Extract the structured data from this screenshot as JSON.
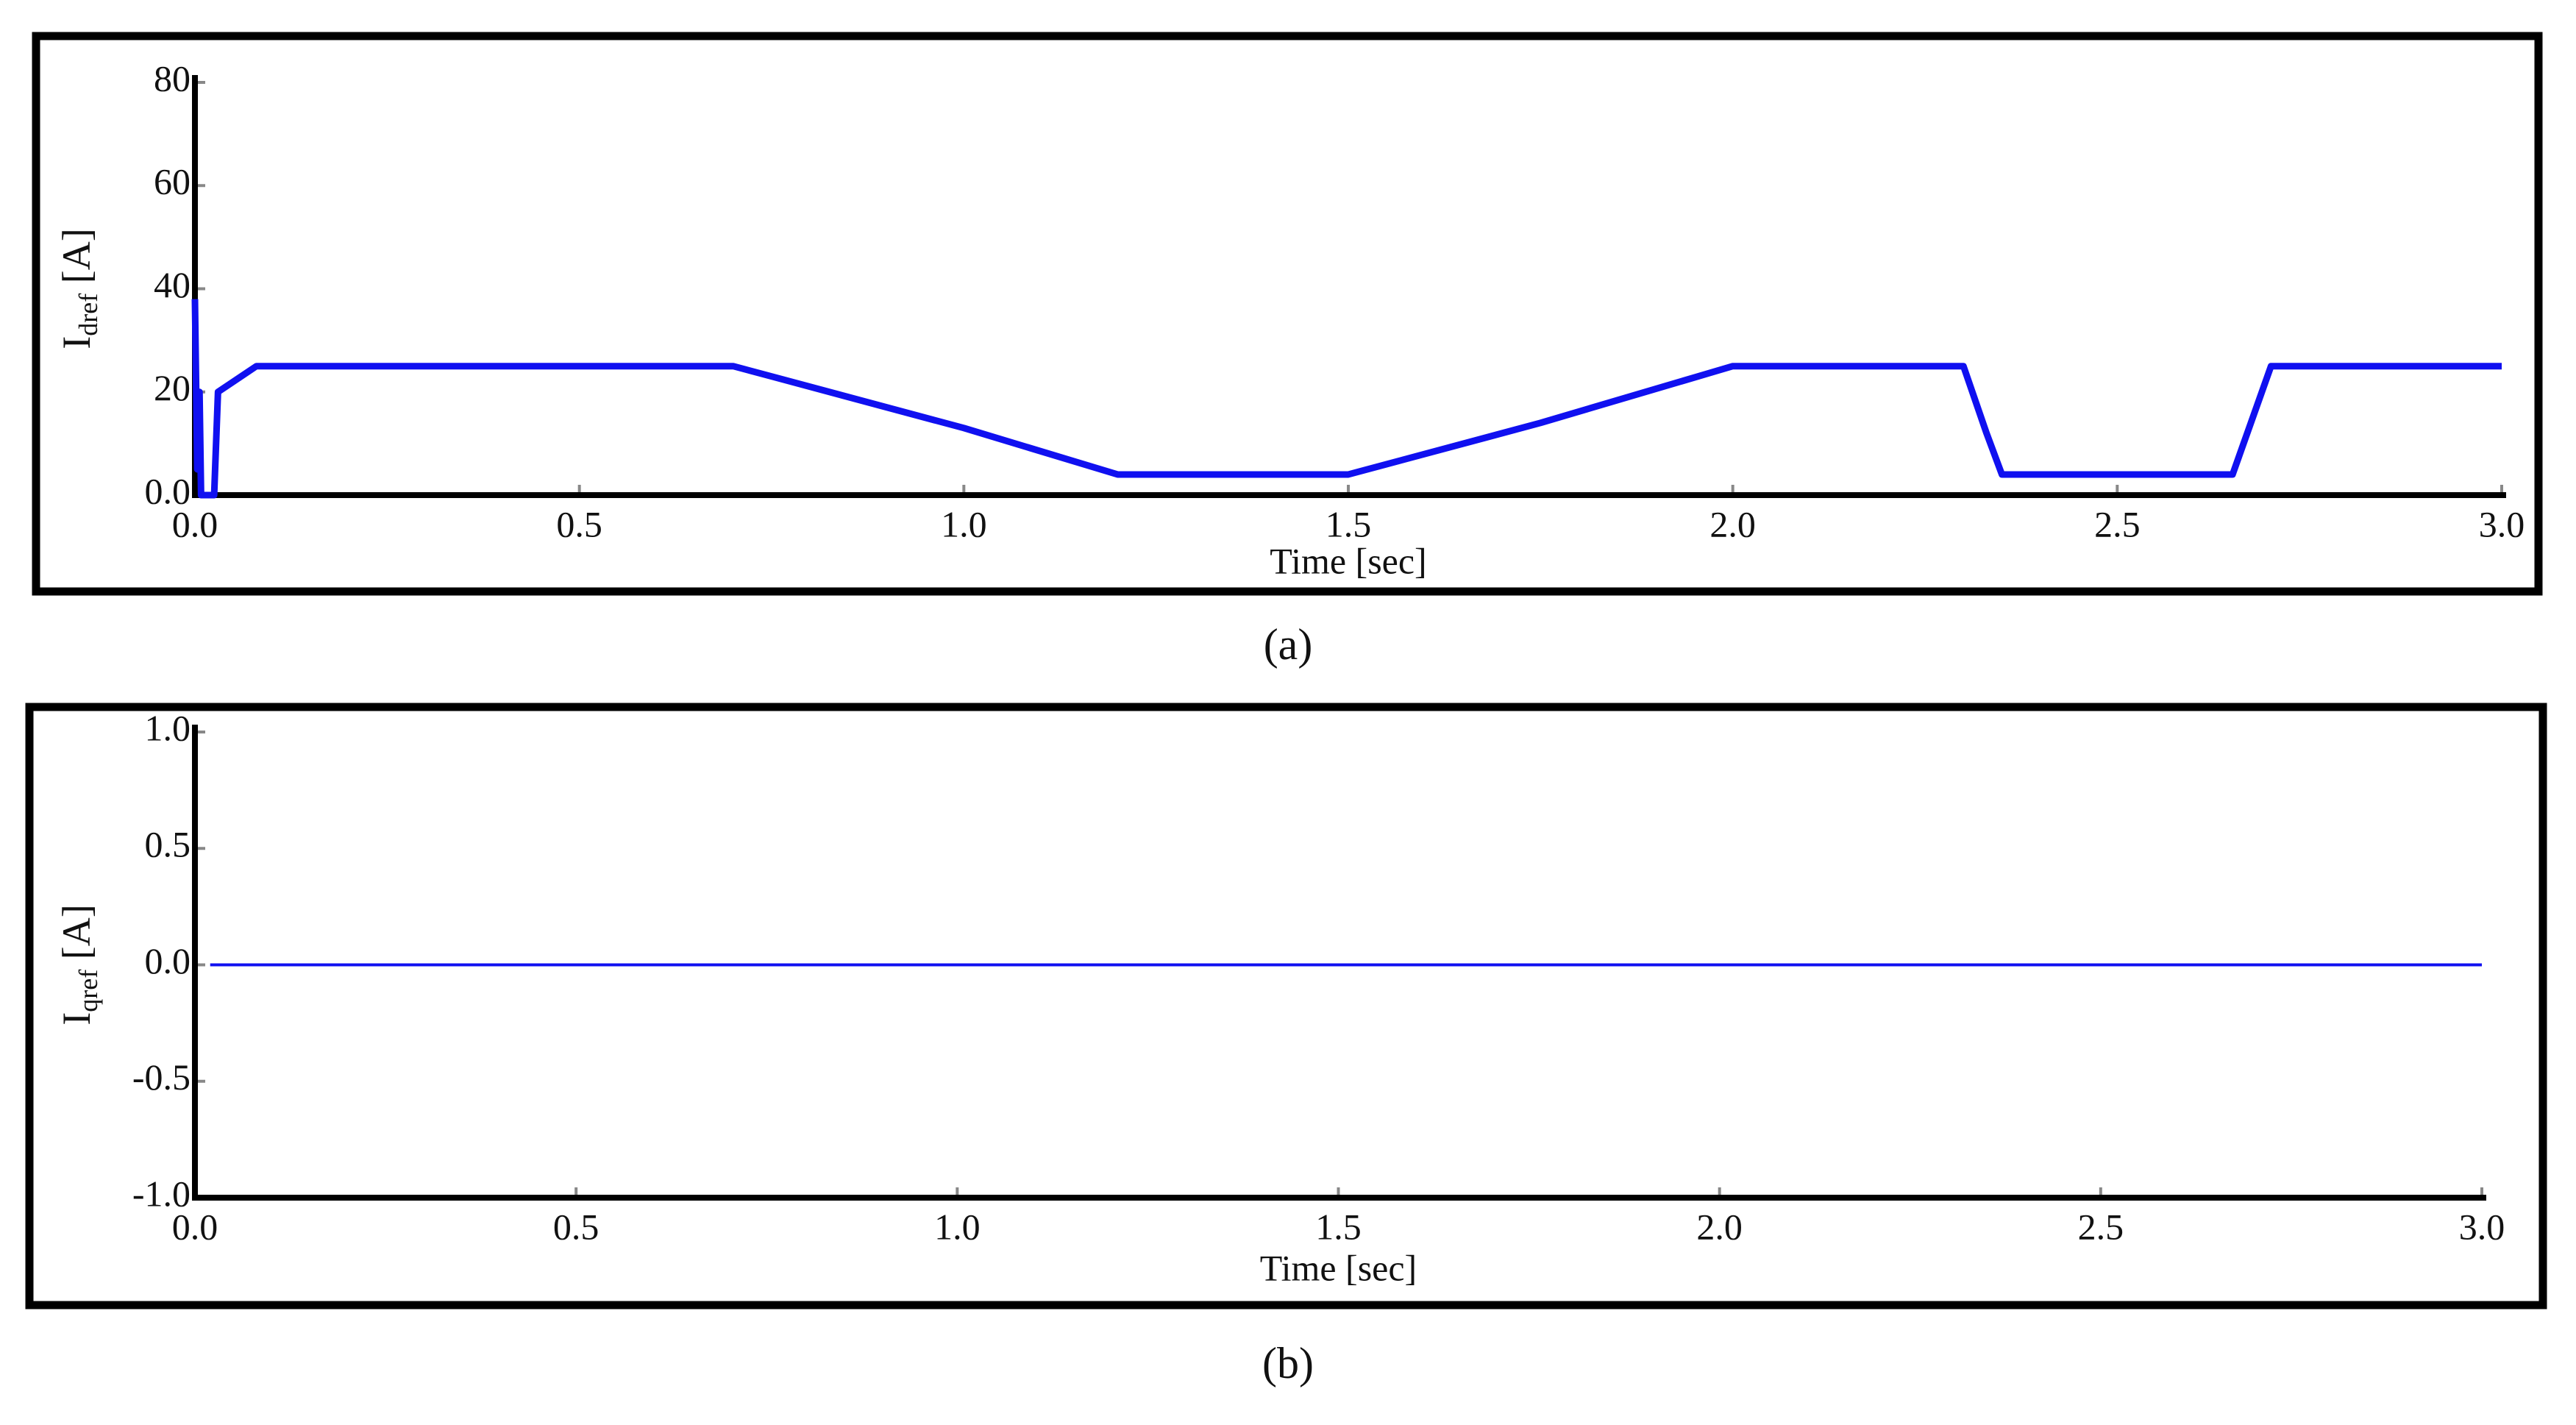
{
  "chart_data": [
    {
      "type": "line",
      "caption": "(a)",
      "xlabel": "Time [sec]",
      "ylabel": {
        "text": "I",
        "subscript": "dref",
        "suffix": " [A]"
      },
      "x": [
        0,
        0.003,
        0.006,
        0.008,
        0.025,
        0.03,
        0.05,
        0.08,
        0.1,
        0.7,
        0.75,
        1.0,
        1.2,
        1.5,
        1.75,
        2.0,
        2.3,
        2.33,
        2.35,
        2.65,
        2.7,
        3.0
      ],
      "series": [
        {
          "color": "#1010f0",
          "values": [
            38,
            5,
            20,
            0,
            0,
            20,
            22,
            25,
            25,
            25,
            23,
            13,
            4,
            4,
            14,
            25,
            25,
            12,
            4,
            4,
            25,
            25
          ]
        }
      ],
      "xlim": [
        0,
        3
      ],
      "xticks": [
        {
          "value": 0,
          "label": "0.0"
        },
        0.5,
        {
          "value": 1,
          "label": "1.0"
        },
        1.5,
        {
          "value": 2,
          "label": "2.0"
        },
        2.5,
        {
          "value": 3,
          "label": "3.0"
        }
      ],
      "ylim": [
        0,
        80
      ],
      "yticks": [
        {
          "value": 0,
          "label": "0.0"
        },
        20,
        40,
        60,
        80
      ]
    },
    {
      "type": "line",
      "caption": "(b)",
      "xlabel": "Time [sec]",
      "ylabel": {
        "text": "I",
        "subscript": "qref",
        "suffix": " [A]"
      },
      "x": [
        0.02,
        3.0
      ],
      "series": [
        {
          "color": "#1010f0",
          "values": [
            0,
            0
          ]
        }
      ],
      "xlim": [
        0,
        3
      ],
      "xticks": [
        {
          "value": 0,
          "label": "0.0"
        },
        0.5,
        {
          "value": 1,
          "label": "1.0"
        },
        1.5,
        {
          "value": 2,
          "label": "2.0"
        },
        2.5,
        {
          "value": 3,
          "label": "3.0"
        }
      ],
      "ylim": [
        -1,
        1
      ],
      "yticks": [
        {
          "value": -1,
          "label": "-1.0"
        },
        {
          "value": -0.5,
          "label": "-0.5"
        },
        {
          "value": 0,
          "label": "0.0"
        },
        0.5,
        {
          "value": 1,
          "label": "1.0"
        }
      ]
    }
  ]
}
